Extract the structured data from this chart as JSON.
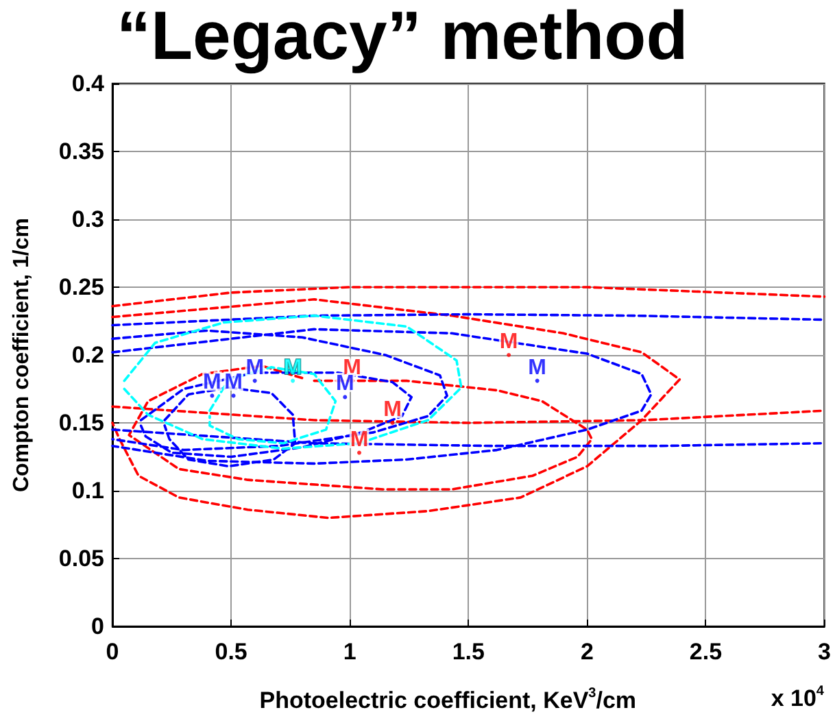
{
  "chart_data": {
    "type": "line",
    "title": "“Legacy” method",
    "xlabel": "Photoelectric coefficient, KeV$^{3}$/cm",
    "ylabel": "Compton coefficient, 1/cm",
    "annotations": [
      "x 10$^{4}$"
    ],
    "xlim": [
      0,
      3
    ],
    "xticks": [
      0,
      0.5,
      1,
      1.5,
      2,
      2.5,
      3
    ],
    "ylim": [
      0,
      0.4
    ],
    "yticks": [
      0,
      0.05,
      0.1,
      0.15,
      0.2,
      0.25,
      0.3,
      0.35,
      0.4
    ],
    "grid": true,
    "line_style": "dashed",
    "marker": "none",
    "series": [
      {
        "color": "#ff0000",
        "x": [
          0,
          0.5,
          1,
          2,
          3
        ],
        "values": [
          0.236,
          0.246,
          0.25,
          0.25,
          0.243
        ]
      },
      {
        "color": "#ff0000",
        "x": [
          0,
          0.85,
          1.5,
          2.24,
          3
        ],
        "values": [
          0.162,
          0.152,
          0.15,
          0.152,
          0.159
        ]
      },
      {
        "color": "#ff0000",
        "x": [
          0,
          0.85,
          1.43,
          1.9,
          2.23,
          2.39,
          2.23,
          2.0,
          1.72,
          1.33,
          0.91,
          0.57,
          0.28,
          0.11,
          0.03,
          0
        ],
        "values": [
          0.228,
          0.241,
          0.229,
          0.216,
          0.202,
          0.182,
          0.152,
          0.118,
          0.095,
          0.085,
          0.08,
          0.086,
          0.095,
          0.111,
          0.138,
          0.15
        ]
      },
      {
        "color": "#ff0000",
        "x": [
          0.85,
          1.24,
          1.62,
          1.81,
          2.0,
          2.02,
          1.96,
          1.77,
          1.43,
          1.14,
          0.57,
          0.28,
          0.07,
          0.15,
          0.38,
          0.63,
          0.8
        ],
        "values": [
          0.181,
          0.181,
          0.174,
          0.166,
          0.145,
          0.138,
          0.125,
          0.111,
          0.101,
          0.101,
          0.108,
          0.116,
          0.141,
          0.166,
          0.186,
          0.192,
          0.183
        ]
      },
      {
        "color": "#0000ff",
        "x": [
          0,
          0.85,
          1.5,
          2.2,
          3
        ],
        "values": [
          0.222,
          0.229,
          0.23,
          0.229,
          0.226
        ]
      },
      {
        "color": "#0000ff",
        "x": [
          0,
          0.85,
          1.6,
          2.3,
          3
        ],
        "values": [
          0.145,
          0.135,
          0.133,
          0.133,
          0.135
        ]
      },
      {
        "color": "#0000ff",
        "x": [
          0,
          0.85,
          1.43,
          2.0,
          2.23,
          2.27,
          2.23,
          2.0,
          1.62,
          1.24,
          0.85,
          0.4,
          0
        ],
        "values": [
          0.202,
          0.219,
          0.216,
          0.201,
          0.186,
          0.171,
          0.159,
          0.145,
          0.13,
          0.123,
          0.12,
          0.122,
          0.133
        ]
      },
      {
        "color": "#0000ff",
        "x": [
          0,
          0.4,
          0.8,
          1.15,
          1.38,
          1.41,
          1.33,
          1.1,
          0.7,
          0.3,
          0
        ],
        "values": [
          0.212,
          0.218,
          0.213,
          0.2,
          0.185,
          0.17,
          0.155,
          0.143,
          0.133,
          0.13,
          0.138
        ]
      },
      {
        "color": "#0000ff",
        "x": [
          0.12,
          0.3,
          0.6,
          0.95,
          1.18,
          1.26,
          1.22,
          1.05,
          0.8,
          0.5,
          0.25,
          0.14,
          0.12
        ],
        "values": [
          0.152,
          0.175,
          0.187,
          0.187,
          0.18,
          0.169,
          0.155,
          0.143,
          0.132,
          0.125,
          0.128,
          0.14,
          0.148
        ]
      },
      {
        "color": "#0000ff",
        "x": [
          0.22,
          0.32,
          0.49,
          0.67,
          0.76,
          0.77,
          0.68,
          0.49,
          0.32,
          0.24,
          0.22
        ],
        "values": [
          0.152,
          0.171,
          0.176,
          0.172,
          0.156,
          0.135,
          0.123,
          0.118,
          0.123,
          0.138,
          0.148
        ]
      },
      {
        "color": "#00ffff",
        "x": [
          0.05,
          0.18,
          0.47,
          0.85,
          1.24,
          1.45,
          1.47,
          1.33,
          1.04,
          0.72,
          0.38,
          0.15,
          0.05
        ],
        "values": [
          0.181,
          0.209,
          0.224,
          0.229,
          0.221,
          0.196,
          0.176,
          0.152,
          0.135,
          0.131,
          0.138,
          0.156,
          0.175
        ]
      },
      {
        "color": "#00ffff",
        "x": [
          0.41,
          0.49,
          0.67,
          0.85,
          0.94,
          0.9,
          0.72,
          0.53,
          0.41,
          0.41
        ],
        "values": [
          0.159,
          0.182,
          0.191,
          0.186,
          0.166,
          0.145,
          0.135,
          0.138,
          0.148,
          0.155
        ]
      },
      {
        "type": "scatter",
        "marker": "circle",
        "color": "#ff0000",
        "x": [
          1.01,
          1.18,
          1.04,
          1.67
        ],
        "values": [
          0.181,
          0.15,
          0.128,
          0.2
        ],
        "value_labels": [
          "M",
          "M",
          "M",
          "M"
        ]
      },
      {
        "type": "scatter",
        "marker": "circle",
        "color": "#0000ff",
        "x": [
          0.42,
          0.51,
          0.6,
          0.98,
          1.79
        ],
        "values": [
          0.17,
          0.17,
          0.181,
          0.169,
          0.181
        ],
        "value_labels": [
          "M",
          "M",
          "M",
          "M",
          "M"
        ]
      },
      {
        "type": "scatter",
        "marker": "circle",
        "color": "#00ffff",
        "x": [
          0.76
        ],
        "values": [
          0.181
        ],
        "value_labels": [
          "M"
        ]
      }
    ]
  }
}
